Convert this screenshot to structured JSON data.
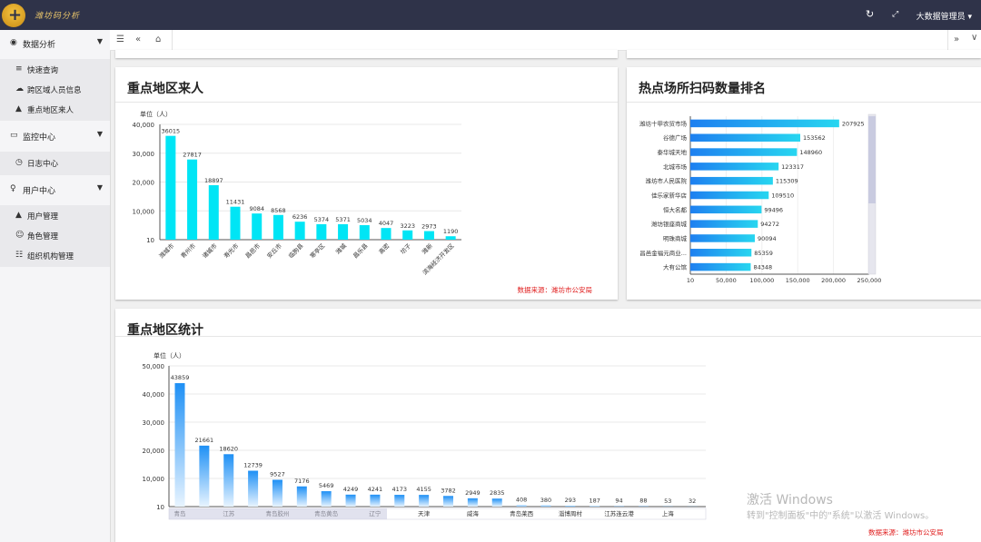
{
  "topbar": {
    "brand": "潍坊码分析",
    "refresh_icon": "refresh-icon",
    "fullscreen_icon": "fullscreen-icon",
    "user_label": "大数据管理员 ▾"
  },
  "sidebar": {
    "sections": [
      {
        "label": "数据分析",
        "icon": "globe-icon"
      },
      {
        "label": "监控中心",
        "icon": "monitor-icon"
      },
      {
        "label": "用户中心",
        "icon": "user-icon"
      }
    ],
    "data_items": [
      {
        "label": "快速查询",
        "icon": "filter-icon"
      },
      {
        "label": "跨区域人员信息",
        "icon": "cloud-icon"
      },
      {
        "label": "重点地区来人",
        "icon": "person-icon"
      }
    ],
    "monitor_items": [
      {
        "label": "日志中心",
        "icon": "clock-icon"
      }
    ],
    "user_items": [
      {
        "label": "用户管理",
        "icon": "person-icon"
      },
      {
        "label": "角色管理",
        "icon": "group-icon"
      },
      {
        "label": "组织机构管理",
        "icon": "org-icon"
      }
    ]
  },
  "tabbar": {
    "menu_icon": "menu-icon",
    "back_icon": "double-left-icon",
    "home_icon": "home-icon",
    "forward_icon": "double-right-icon"
  },
  "panels": {
    "region_arrivals": {
      "title": "重点地区来人",
      "source": "数据来源：潍坊市公安局"
    },
    "hotspot_scans": {
      "title": "热点场所扫码数量排名"
    },
    "region_stats": {
      "title": "重点地区统计",
      "source": "数据来源：潍坊市公安局"
    }
  },
  "watermark": {
    "line1": "激活 Windows",
    "line2": "转到\"控制面板\"中的\"系统\"以激活 Windows。"
  },
  "chart_data": [
    {
      "type": "bar",
      "title": "重点地区来人",
      "unit_label": "单位（人）",
      "categories": [
        "潍城市",
        "青州市",
        "诸城市",
        "寿光市",
        "昌邑市",
        "安丘市",
        "临朐县",
        "寒亭区",
        "潍城",
        "昌乐县",
        "高密",
        "坊子",
        "潍新",
        "滨海经济开发区"
      ],
      "values": [
        36015,
        27817,
        18897,
        11431,
        9084,
        8568,
        6236,
        5374,
        5371,
        5034,
        4047,
        3223,
        2973,
        1190
      ],
      "yticks": [
        "10",
        "10,000",
        "20,000",
        "30,000",
        "40,000"
      ],
      "ylim": [
        0,
        40000
      ],
      "color": "#00e5f5"
    },
    {
      "type": "bar",
      "orientation": "horizontal",
      "title": "热点场所扫码数量排名",
      "categories": [
        "潍坊十甲农贸市场",
        "谷德广场",
        "泰华城天地",
        "北城市场",
        "潍坊市人民医院",
        "佳乐家新华店",
        "恒大名都",
        "潍坊银座商城",
        "明珠商城",
        "昌邑金福元商业...",
        "大有公馆"
      ],
      "values": [
        207925,
        153562,
        148960,
        123317,
        115309,
        109510,
        99496,
        94272,
        90094,
        85359,
        84348
      ],
      "xticks": [
        "10",
        "50,000",
        "100,000",
        "150,000",
        "200,000",
        "250,000"
      ],
      "xlim": [
        0,
        250000
      ],
      "color": "#1e7ff0"
    },
    {
      "type": "bar",
      "title": "重点地区统计",
      "unit_label": "单位（人）",
      "categories": [
        "青岛",
        "",
        "江苏",
        "",
        "青岛胶州",
        "",
        "青岛黄岛",
        "",
        "辽宁",
        "",
        "天津",
        "",
        "威海",
        "",
        "青岛莱西",
        "",
        "淄博周村",
        "",
        "江苏连云港",
        "",
        "上海",
        ""
      ],
      "values": [
        43859,
        21661,
        18620,
        12739,
        9527,
        7176,
        5469,
        4249,
        4241,
        4173,
        4155,
        3782,
        2949,
        2835,
        408,
        380,
        293,
        187,
        94,
        88,
        53,
        32
      ],
      "yticks": [
        "10",
        "10,000",
        "20,000",
        "30,000",
        "40,000",
        "50,000"
      ],
      "ylim": [
        0,
        50000
      ],
      "color": "#1e90f5"
    }
  ]
}
